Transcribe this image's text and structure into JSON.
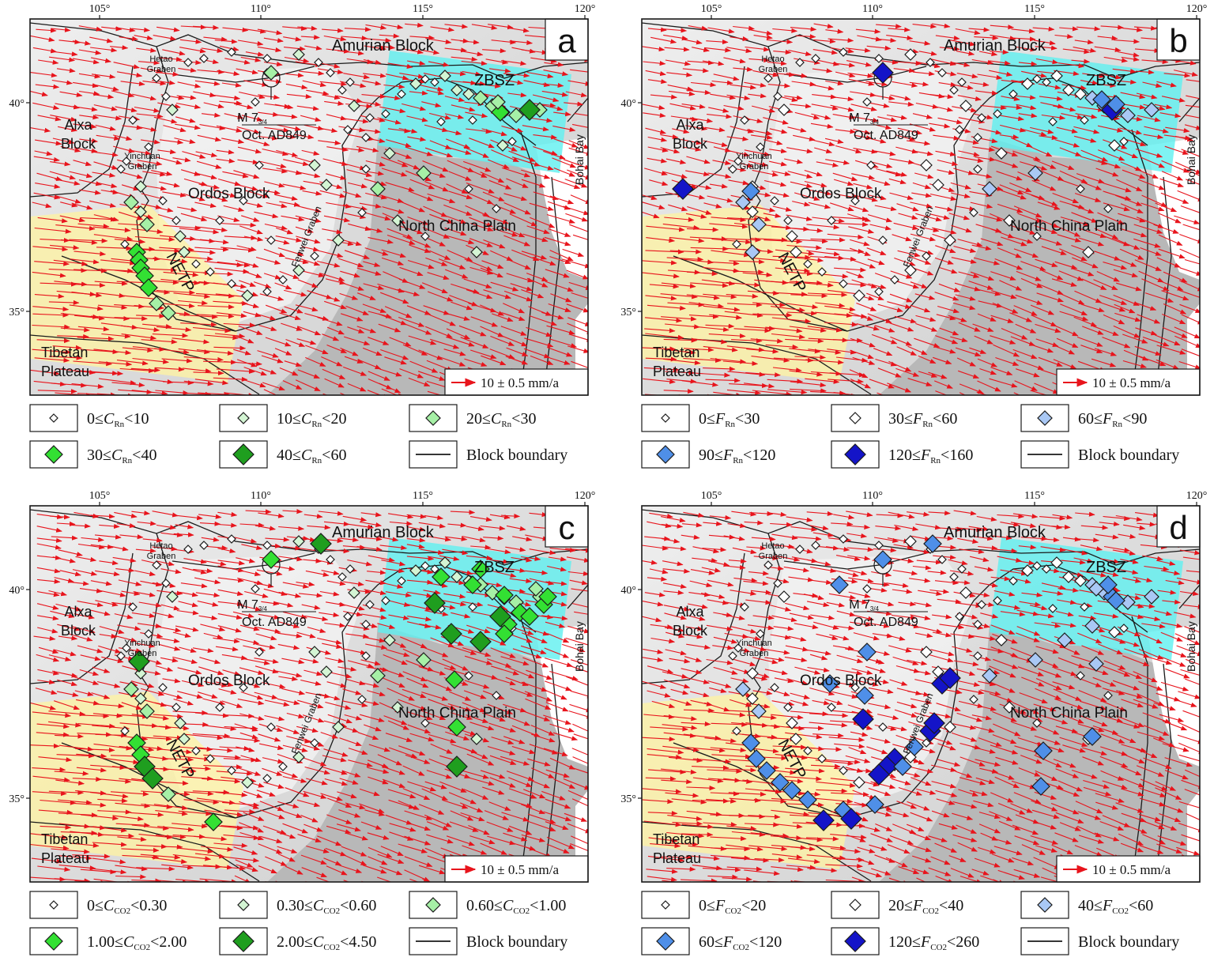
{
  "panels": [
    {
      "letter": "a",
      "variable": "C",
      "gas": "Rn",
      "legend": [
        {
          "lower": "0",
          "upper": "10",
          "color": "#ffffff",
          "size": "xs"
        },
        {
          "lower": "10",
          "upper": "20",
          "color": "#d4f5d4",
          "size": "s"
        },
        {
          "lower": "20",
          "upper": "30",
          "color": "#a6f0a6",
          "size": "m"
        },
        {
          "lower": "30",
          "upper": "40",
          "color": "#33e033",
          "size": "l"
        },
        {
          "lower": "40",
          "upper": "60",
          "color": "#1f9e1f",
          "size": "xl"
        }
      ]
    },
    {
      "letter": "b",
      "variable": "F",
      "gas": "Rn",
      "legend": [
        {
          "lower": "0",
          "upper": "30",
          "color": "#ffffff",
          "size": "xs"
        },
        {
          "lower": "30",
          "upper": "60",
          "color": "#ffffff",
          "size": "s"
        },
        {
          "lower": "60",
          "upper": "90",
          "color": "#a9c8f5",
          "size": "m"
        },
        {
          "lower": "90",
          "upper": "120",
          "color": "#4f8fe8",
          "size": "l"
        },
        {
          "lower": "120",
          "upper": "160",
          "color": "#1414c8",
          "size": "xl"
        }
      ]
    },
    {
      "letter": "c",
      "variable": "C",
      "gas": "CO2",
      "legend": [
        {
          "lower": "0",
          "upper": "0.30",
          "color": "#ffffff",
          "size": "xs"
        },
        {
          "lower": "0.30",
          "upper": "0.60",
          "color": "#d4f5d4",
          "size": "s"
        },
        {
          "lower": "0.60",
          "upper": "1.00",
          "color": "#a6f0a6",
          "size": "m"
        },
        {
          "lower": "1.00",
          "upper": "2.00",
          "color": "#33e033",
          "size": "l"
        },
        {
          "lower": "2.00",
          "upper": "4.50",
          "color": "#1f9e1f",
          "size": "xl"
        }
      ]
    },
    {
      "letter": "d",
      "variable": "F",
      "gas": "CO2",
      "legend": [
        {
          "lower": "0",
          "upper": "20",
          "color": "#ffffff",
          "size": "xs"
        },
        {
          "lower": "20",
          "upper": "40",
          "color": "#ffffff",
          "size": "s"
        },
        {
          "lower": "40",
          "upper": "60",
          "color": "#a9c8f5",
          "size": "m"
        },
        {
          "lower": "60",
          "upper": "120",
          "color": "#4f8fe8",
          "size": "l"
        },
        {
          "lower": "120",
          "upper": "260",
          "color": "#1414c8",
          "size": "xl"
        }
      ]
    }
  ],
  "map": {
    "lon_ticks": [
      "105°",
      "110°",
      "115°",
      "120°"
    ],
    "lat_ticks": [
      "40°",
      "35°"
    ],
    "labels": {
      "amurian": "Amurian Block",
      "hetao_1": "Hetao",
      "hetao_2": "Graben",
      "alxa_1": "Alxa",
      "alxa_2": "Block",
      "yinchuan_1": "Yinchuan",
      "yinchuan_2": "Graben",
      "ordos": "Ordos Block",
      "fenwei": "Fenwei Graben",
      "north_china": "North China Plain",
      "netp": "NETP",
      "zbsz": "ZBSZ",
      "bohai": "Bohai Bay",
      "tibetan_1": "Tibetan",
      "tibetan_2": "Plateau",
      "quake_mag": "M 7",
      "quake_mag_sub": "3/4",
      "quake_date": "Oct. AD849"
    },
    "scale_label": "10 ± 0.5 mm/a",
    "block_boundary_label": "Block boundary",
    "colors": {
      "velocity_arrow": "#e8141c",
      "netp_zone": "#fff3a0",
      "zbsz_zone": "#5ff0f0",
      "plain": "#b8b8b8",
      "terrain": "#e8e8e8"
    }
  }
}
